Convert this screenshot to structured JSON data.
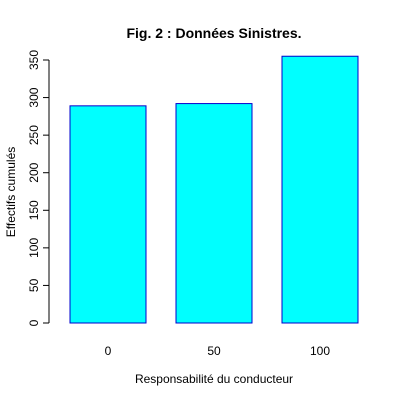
{
  "chart_data": {
    "type": "bar",
    "title": "Fig. 2 : Données Sinistres.",
    "xlabel": "Responsabilité du conducteur",
    "ylabel": "Effectifs cumulés",
    "categories": [
      "0",
      "50",
      "100"
    ],
    "values": [
      289,
      292,
      355
    ],
    "ylim": [
      0,
      350
    ],
    "yticks": [
      0,
      50,
      100,
      150,
      200,
      250,
      300,
      350
    ],
    "grid": false,
    "bar_fill": "#00FFFF",
    "bar_stroke": "#0000CC"
  }
}
